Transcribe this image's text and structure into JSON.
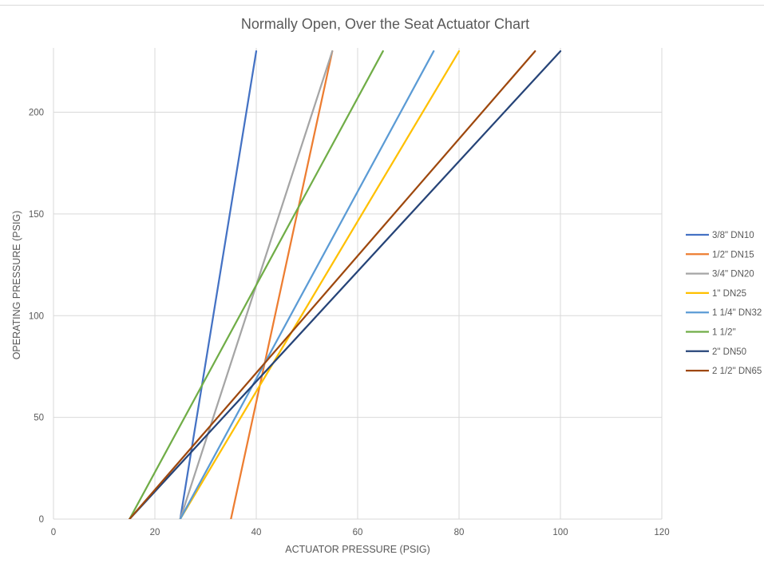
{
  "chart_data": {
    "type": "line",
    "title": "Normally Open, Over the Seat Actuator Chart",
    "xlabel": "ACTUATOR PRESSURE (PSIG)",
    "ylabel": "OPERATING PRESSURE (PSIG)",
    "xlim": [
      0,
      120
    ],
    "ylim": [
      0,
      230
    ],
    "xticks": [
      0,
      20,
      40,
      60,
      80,
      100,
      120
    ],
    "yticks": [
      0,
      50,
      100,
      150,
      200
    ],
    "grid": true,
    "legend_position": "right",
    "series": [
      {
        "name": "3/8\" DN10",
        "color": "#4472c4",
        "x": [
          25,
          40
        ],
        "y": [
          0,
          230
        ]
      },
      {
        "name": "1/2\" DN15",
        "color": "#ed7d31",
        "x": [
          35,
          55
        ],
        "y": [
          0,
          230
        ]
      },
      {
        "name": "3/4\" DN20",
        "color": "#a5a5a5",
        "x": [
          25,
          55
        ],
        "y": [
          0,
          230
        ]
      },
      {
        "name": "1\" DN25",
        "color": "#ffc000",
        "x": [
          25,
          80
        ],
        "y": [
          0,
          230
        ]
      },
      {
        "name": "1 1/4\" DN32",
        "color": "#5b9bd5",
        "x": [
          25,
          75
        ],
        "y": [
          0,
          230
        ]
      },
      {
        "name": "1 1/2\"",
        "color": "#70ad47",
        "x": [
          15,
          65
        ],
        "y": [
          0,
          230
        ]
      },
      {
        "name": "2\" DN50",
        "color": "#264478",
        "x": [
          15,
          100
        ],
        "y": [
          0,
          230
        ]
      },
      {
        "name": "2 1/2\" DN65",
        "color": "#9e480e",
        "x": [
          15,
          95
        ],
        "y": [
          0,
          230
        ]
      }
    ]
  },
  "colors": {
    "gridline": "#d9d9d9",
    "text": "#595959"
  }
}
